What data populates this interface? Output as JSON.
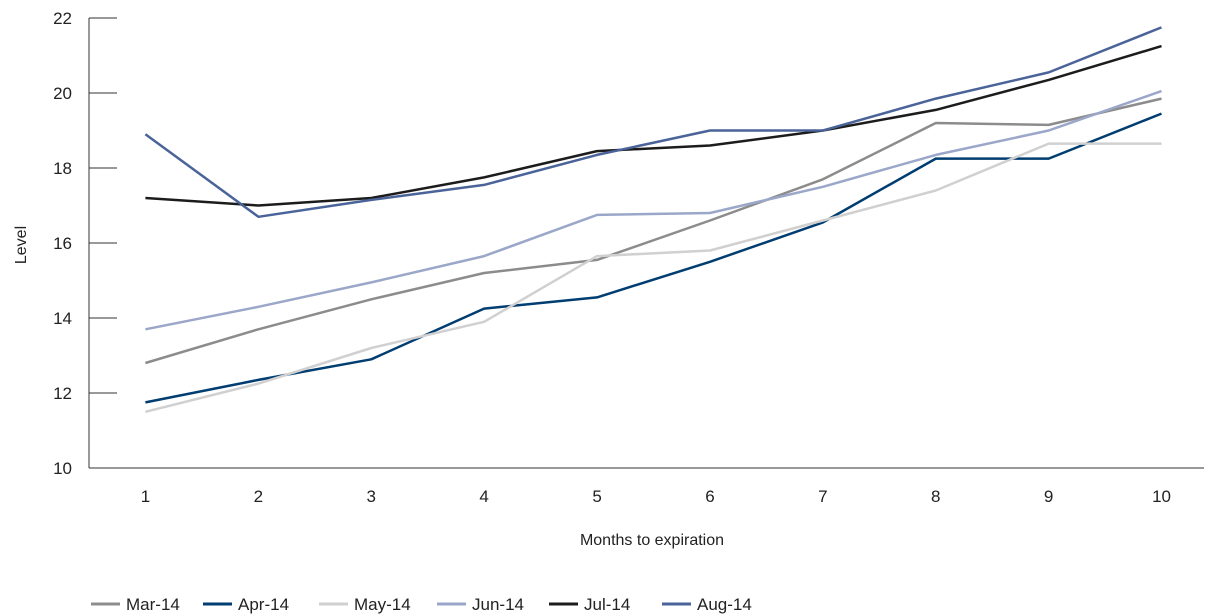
{
  "chart_data": {
    "type": "line",
    "xlabel": "Months to expiration",
    "ylabel": "Level",
    "x": [
      1,
      2,
      3,
      4,
      5,
      6,
      7,
      8,
      9,
      10
    ],
    "x_tick_labels": [
      "1",
      "2",
      "3",
      "4",
      "5",
      "6",
      "7",
      "8",
      "9",
      "10"
    ],
    "xlim": [
      0.5,
      10.5
    ],
    "ylim": [
      10,
      22
    ],
    "y_ticks": [
      10,
      12,
      14,
      16,
      18,
      20,
      22
    ],
    "y_tick_labels": [
      "10",
      "12",
      "14",
      "16",
      "18",
      "20",
      "22"
    ],
    "grid": false,
    "legend_position": "bottom-left",
    "series": [
      {
        "name": "Mar-14",
        "color": "#8c8c8c",
        "values": [
          12.8,
          13.7,
          14.5,
          15.2,
          15.55,
          16.6,
          17.7,
          19.2,
          19.15,
          19.85
        ]
      },
      {
        "name": "Apr-14",
        "color": "#003d71",
        "values": [
          11.75,
          12.35,
          12.9,
          14.25,
          14.55,
          15.5,
          16.55,
          18.25,
          18.25,
          19.45
        ]
      },
      {
        "name": "May-14",
        "color": "#d0d0d0",
        "values": [
          11.5,
          12.25,
          13.2,
          13.9,
          15.65,
          15.8,
          16.6,
          17.4,
          18.65,
          18.65
        ]
      },
      {
        "name": "Jun-14",
        "color": "#9aa7c9",
        "values": [
          13.7,
          14.3,
          14.95,
          15.65,
          16.75,
          16.8,
          17.5,
          18.35,
          19.0,
          20.05
        ]
      },
      {
        "name": "Jul-14",
        "color": "#1c1c1c",
        "values": [
          17.2,
          17.0,
          17.2,
          17.75,
          18.45,
          18.6,
          19.0,
          19.55,
          20.35,
          21.25
        ]
      },
      {
        "name": "Aug-14",
        "color": "#4a6399",
        "values": [
          18.9,
          16.7,
          17.15,
          17.55,
          18.35,
          19.0,
          19.0,
          19.85,
          20.55,
          21.75
        ]
      }
    ]
  }
}
